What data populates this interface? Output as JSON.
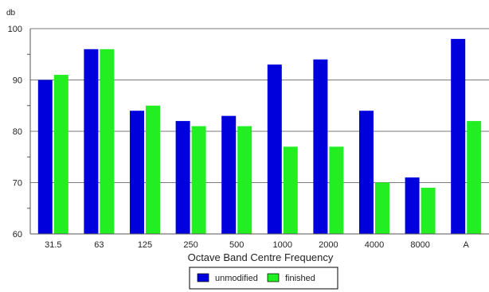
{
  "chart_data": {
    "type": "bar",
    "title": "",
    "y_unit_label": "db",
    "xlabel": "Octave Band Centre Frequency",
    "ylabel": "",
    "categories": [
      "31.5",
      "63",
      "125",
      "250",
      "500",
      "1000",
      "2000",
      "4000",
      "8000",
      "A"
    ],
    "ylim": [
      60,
      100
    ],
    "yticks": [
      60,
      70,
      80,
      90,
      100
    ],
    "grid": true,
    "legend_position": "bottom-center",
    "series": [
      {
        "name": "unmodified",
        "color": "#0000dd",
        "values": [
          90,
          96,
          84,
          82,
          83,
          93,
          94,
          84,
          71,
          98
        ]
      },
      {
        "name": "finished",
        "color": "#22ee22",
        "values": [
          91,
          96,
          85,
          81,
          81,
          77,
          77,
          70,
          69,
          82
        ]
      }
    ]
  }
}
